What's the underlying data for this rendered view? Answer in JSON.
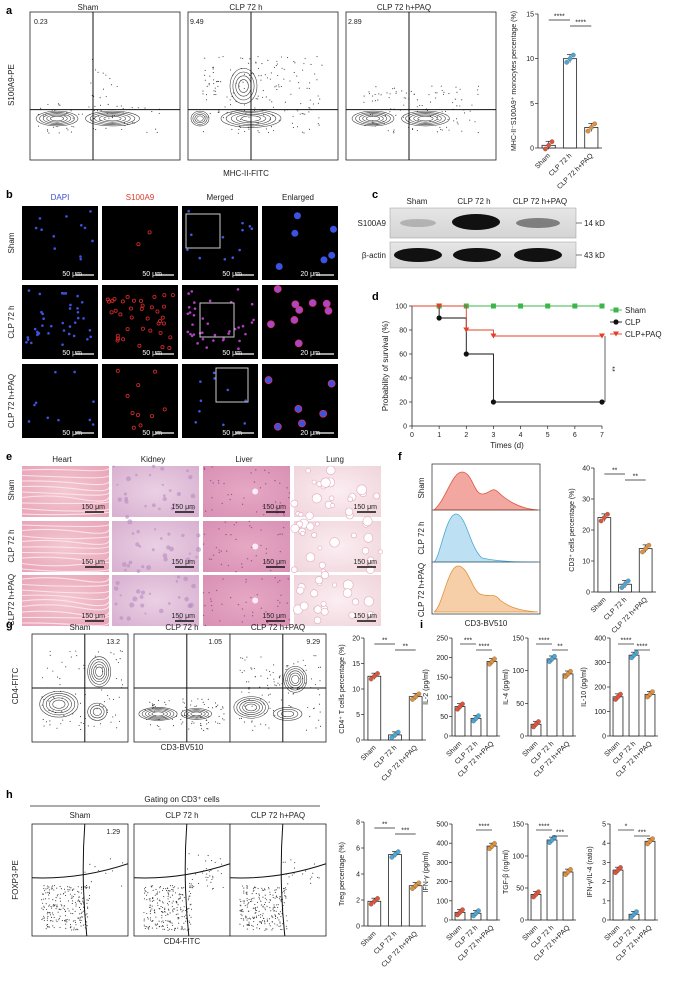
{
  "panels": {
    "a": {
      "letter": "a",
      "titles": [
        "Sham",
        "CLP 72 h",
        "CLP 72 h+PAQ"
      ],
      "quadrant_values": [
        "0.23",
        "9.49",
        "2.89"
      ],
      "y_label": "S100A9-PE",
      "x_label": "MHC-II-FITC"
    },
    "b": {
      "letter": "b",
      "columns": [
        "DAPI",
        "S100A9",
        "Merged",
        "Enlarged"
      ],
      "rows": [
        "Sham",
        "CLP 72 h",
        "CLP 72 h+PAQ"
      ],
      "scale_50": "50 μm",
      "scale_20": "20 μm"
    },
    "c": {
      "letter": "c",
      "lanes": [
        "Sham",
        "CLP 72 h",
        "CLP 72 h+PAQ"
      ],
      "bands": [
        "S100A9",
        "β-actin"
      ],
      "sizes": [
        "14 kD",
        "43 kD"
      ]
    },
    "d": {
      "letter": "d"
    },
    "e": {
      "letter": "e",
      "columns": [
        "Heart",
        "Kidney",
        "Liver",
        "Lung"
      ],
      "rows": [
        "Sham",
        "CLP 72 h",
        "CLP72 h+PAQ"
      ],
      "scale": "150 μm"
    },
    "f": {
      "letter": "f",
      "rows": [
        "Sham",
        "CLP 72 h",
        "CLP 72 h+PAQ"
      ],
      "x_label": "CD3-BV510"
    },
    "g": {
      "letter": "g",
      "titles": [
        "Sham",
        "CLP 72 h",
        "CLP 72 h+PAQ"
      ],
      "quadrant_values": [
        "13.2",
        "1.05",
        "9.29"
      ],
      "y_label": "CD4-FITC",
      "x_label": "CD3-BV510"
    },
    "h": {
      "letter": "h",
      "gating": "Gating on CD3⁺ cells",
      "titles": [
        "Sham",
        "CLP 72 h",
        "CLP 72 h+PAQ"
      ],
      "quadrant_values": [
        "1.29"
      ],
      "y_label": "FOXP3-PE",
      "x_label": "CD4-FITC"
    },
    "i": {
      "letter": "i"
    }
  },
  "colors": {
    "sham": "#e0533a",
    "clp": "#4aa8d8",
    "paq": "#e0913a",
    "survival_sham": "#3cb54a",
    "survival_paq": "#e0402a"
  },
  "chart_data": [
    {
      "id": "a_bar",
      "type": "bar",
      "categories": [
        "Sham",
        "CLP 72 h",
        "CLP 72 h+PAQ"
      ],
      "values": [
        0.3,
        10.0,
        2.3
      ],
      "ylabel": "MHC-II⁻S100A9⁺ monocytes percentage (%)",
      "ylim": [
        0,
        15
      ],
      "yticks": [
        0,
        5,
        10,
        15
      ],
      "sig": [
        "****",
        "****"
      ]
    },
    {
      "id": "d_survival",
      "type": "line",
      "xlabel": "Times (d)",
      "ylabel": "Probability of survival (%)",
      "xlim": [
        0,
        7
      ],
      "ylim": [
        0,
        100
      ],
      "xticks": [
        0,
        1,
        2,
        3,
        4,
        5,
        6,
        7
      ],
      "yticks": [
        0,
        20,
        40,
        60,
        80,
        100
      ],
      "series": [
        {
          "name": "Sham",
          "x": [
            0,
            1,
            2,
            3,
            4,
            5,
            6,
            7
          ],
          "y": [
            100,
            100,
            100,
            100,
            100,
            100,
            100,
            100
          ]
        },
        {
          "name": "CLP",
          "x": [
            0,
            1,
            2,
            3,
            7
          ],
          "y": [
            100,
            90,
            60,
            20,
            20
          ]
        },
        {
          "name": "CLP+PAQ",
          "x": [
            0,
            1,
            2,
            3,
            7
          ],
          "y": [
            100,
            100,
            80,
            75,
            75
          ]
        }
      ],
      "sig": "**"
    },
    {
      "id": "f_bar",
      "type": "bar",
      "categories": [
        "Sham",
        "CLP 72 h",
        "CLP 72 h+PAQ"
      ],
      "values": [
        24,
        2.5,
        14
      ],
      "ylabel": "CD3⁺ cells percentage (%)",
      "ylim": [
        0,
        40
      ],
      "yticks": [
        0,
        10,
        20,
        30,
        40
      ],
      "sig": [
        "**",
        "**"
      ]
    },
    {
      "id": "g_bar",
      "type": "bar",
      "categories": [
        "Sham",
        "CLP 72 h",
        "CLP 72 h+PAQ"
      ],
      "values": [
        12.5,
        1.0,
        8.5
      ],
      "ylabel": "CD4⁺ T cells percentage (%)",
      "ylim": [
        0,
        20
      ],
      "yticks": [
        0,
        5,
        10,
        15,
        20
      ],
      "sig": [
        "**",
        "**"
      ]
    },
    {
      "id": "h_bar",
      "type": "bar",
      "categories": [
        "Sham",
        "CLP 72 h",
        "CLP 72 h+PAQ"
      ],
      "values": [
        1.9,
        5.5,
        3.1
      ],
      "ylabel": "Treg percentage (%)",
      "ylim": [
        0,
        8
      ],
      "yticks": [
        0,
        2,
        4,
        6,
        8
      ],
      "sig": [
        "**",
        "***"
      ]
    },
    {
      "id": "i_il2",
      "type": "bar",
      "categories": [
        "Sham",
        "CLP 72 h",
        "CLP 72 h+PAQ"
      ],
      "values": [
        75,
        45,
        190
      ],
      "ylabel": "IL-2 (pg/ml)",
      "ylim": [
        0,
        250
      ],
      "yticks": [
        0,
        50,
        100,
        150,
        200,
        250
      ],
      "sig": [
        "***",
        "****"
      ]
    },
    {
      "id": "i_il4",
      "type": "bar",
      "categories": [
        "Sham",
        "CLP 72 h",
        "CLP 72 h+PAQ"
      ],
      "values": [
        18,
        118,
        95
      ],
      "ylabel": "IL-4 (pg/ml)",
      "ylim": [
        0,
        150
      ],
      "yticks": [
        0,
        50,
        100,
        150
      ],
      "sig": [
        "****",
        "**"
      ]
    },
    {
      "id": "i_il10",
      "type": "bar",
      "categories": [
        "Sham",
        "CLP 72 h",
        "CLP 72 h+PAQ"
      ],
      "values": [
        160,
        330,
        170
      ],
      "ylabel": "IL-10 (pg/ml)",
      "ylim": [
        0,
        400
      ],
      "yticks": [
        0,
        100,
        200,
        300,
        400
      ],
      "sig": [
        "****",
        "****"
      ]
    },
    {
      "id": "i_ifng",
      "type": "bar",
      "categories": [
        "Sham",
        "CLP 72 h",
        "CLP 72 h+PAQ"
      ],
      "values": [
        40,
        35,
        385
      ],
      "ylabel": "IFN-γ (pg/ml)",
      "ylim": [
        0,
        500
      ],
      "yticks": [
        0,
        100,
        200,
        300,
        400,
        500
      ],
      "sig": [
        "****"
      ]
    },
    {
      "id": "i_tgfb",
      "type": "bar",
      "categories": [
        "Sham",
        "CLP 72 h",
        "CLP 72 h+PAQ"
      ],
      "values": [
        40,
        125,
        75
      ],
      "ylabel": "TGF-β (ng/ml)",
      "ylim": [
        0,
        150
      ],
      "yticks": [
        0,
        50,
        100,
        150
      ],
      "sig": [
        "****",
        "***"
      ]
    },
    {
      "id": "i_ratio",
      "type": "bar",
      "categories": [
        "Sham",
        "CLP 72 h",
        "CLP 72 h+PAQ"
      ],
      "values": [
        2.6,
        0.3,
        4.1
      ],
      "ylabel": "IFN-γ/IL-4 (ratio)",
      "ylim": [
        0,
        5
      ],
      "yticks": [
        0,
        1,
        2,
        3,
        4,
        5
      ],
      "sig": [
        "*",
        "***"
      ]
    }
  ]
}
